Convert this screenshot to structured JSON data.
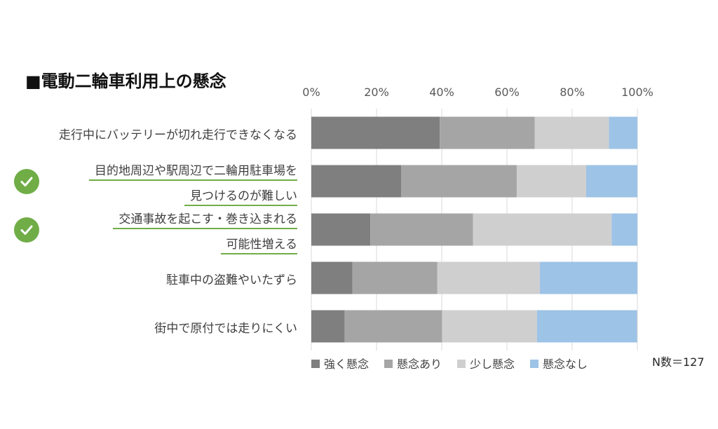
{
  "title": "■電動二輪車利用上の懸念",
  "note": "N数＝127",
  "check_icon": "check-circle-icon",
  "colors": {
    "強く懸念": "#7f7f7f",
    "懸念あり": "#a5a5a5",
    "少し懸念": "#d0cfcf",
    "懸念なし": "#9dc3e6",
    "highlight": "#70ad47"
  },
  "category_labels": [
    {
      "lines": [
        "走行中にバッテリーが切れ走行できなくなる"
      ],
      "highlighted": false
    },
    {
      "lines": [
        "目的地周辺や駅周辺で二輪用駐車場を",
        "見つけるのが難しい"
      ],
      "highlighted": true
    },
    {
      "lines": [
        "交通事故を起こす・巻き込まれる",
        "可能性増える"
      ],
      "highlighted": true
    },
    {
      "lines": [
        "駐車中の盗難やいたずら"
      ],
      "highlighted": false
    },
    {
      "lines": [
        "街中で原付では走りにくい"
      ],
      "highlighted": false
    }
  ],
  "chart_data": {
    "type": "bar",
    "orientation": "horizontal",
    "stacked": true,
    "percent": true,
    "xlim": [
      0,
      100
    ],
    "x_ticks": [
      "0%",
      "20%",
      "40%",
      "60%",
      "80%",
      "100%"
    ],
    "x_axis_position": "top",
    "grid": true,
    "legend_position": "bottom",
    "categories": [
      "走行中にバッテリーが切れ走行できなくなる",
      "目的地周辺や駅周辺で二輪用駐車場を見つけるのが難しい",
      "交通事故を起こす・巻き込まれる可能性増える",
      "駐車中の盗難やいたずら",
      "街中で原付では走りにくい"
    ],
    "series": [
      {
        "name": "強く懸念",
        "values": [
          39.4,
          27.6,
          18.1,
          12.6,
          10.2
        ]
      },
      {
        "name": "懸念あり",
        "values": [
          29.1,
          35.4,
          31.5,
          26.0,
          29.9
        ]
      },
      {
        "name": "少し懸念",
        "values": [
          22.8,
          21.3,
          42.5,
          31.5,
          29.1
        ]
      },
      {
        "name": "懸念なし",
        "values": [
          8.7,
          15.7,
          7.9,
          29.9,
          30.7
        ]
      }
    ]
  }
}
